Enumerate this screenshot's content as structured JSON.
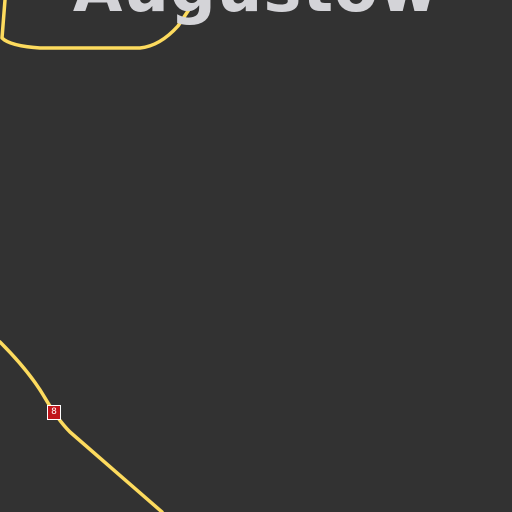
{
  "map": {
    "city_label": "Augustów",
    "road_shield_label": "8",
    "colors": {
      "background": "#323232",
      "road": "#fddb5e",
      "shield_fill": "#c0141a",
      "label": "#d4d4d8"
    }
  }
}
